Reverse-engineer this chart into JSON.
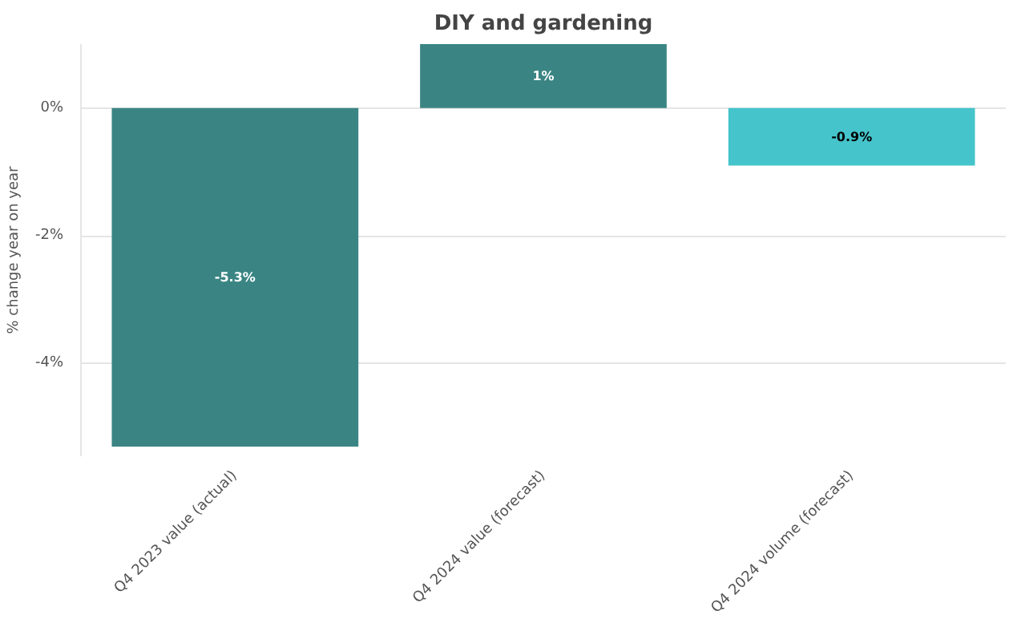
{
  "chart_data": {
    "type": "bar",
    "title": "DIY and gardening",
    "ylabel": "% change year on year",
    "categories": [
      "Q4 2023 value (actual)",
      "Q4 2024 value (forecast)",
      "Q4 2024 volume (forecast)"
    ],
    "values": [
      -5.3,
      1,
      -0.9
    ],
    "colors": [
      "#3a8583",
      "#3a8583",
      "#45c4cb"
    ],
    "value_labels": [
      "-5.3%",
      "1%",
      "-0.9%"
    ],
    "ylim": [
      -5.45,
      1.0
    ],
    "yticks": [
      {
        "value": 0,
        "label": "0%"
      },
      {
        "value": -2,
        "label": "-2%"
      },
      {
        "value": -4,
        "label": "-4%"
      }
    ],
    "grid": "y"
  }
}
